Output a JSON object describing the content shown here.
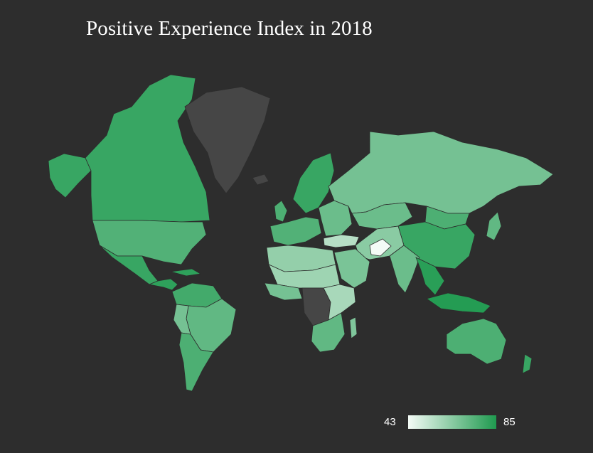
{
  "title": "Positive Experience Index in 2018",
  "legend": {
    "min_label": "43",
    "max_label": "85",
    "min_value": 43,
    "max_value": 85,
    "color_low": "#f4fbf6",
    "color_high": "#1f9a4f"
  },
  "colors": {
    "background": "#2d2d2d",
    "no_data": "#464646"
  },
  "regions": [
    {
      "name": "canada",
      "value": 80
    },
    {
      "name": "alaska",
      "value": 80
    },
    {
      "name": "usa",
      "value": 75
    },
    {
      "name": "mexico",
      "value": 80
    },
    {
      "name": "central-america",
      "value": 82
    },
    {
      "name": "greenland",
      "value": null
    },
    {
      "name": "iceland",
      "value": null
    },
    {
      "name": "south-america-north",
      "value": 78
    },
    {
      "name": "brazil",
      "value": 72
    },
    {
      "name": "south-america-south",
      "value": 76
    },
    {
      "name": "peru-bolivia",
      "value": 68
    },
    {
      "name": "scandinavia",
      "value": 80
    },
    {
      "name": "western-europe",
      "value": 75
    },
    {
      "name": "eastern-europe",
      "value": 70
    },
    {
      "name": "russia",
      "value": 68
    },
    {
      "name": "kazakhstan",
      "value": 70
    },
    {
      "name": "north-africa",
      "value": 62
    },
    {
      "name": "sahel",
      "value": 60
    },
    {
      "name": "west-africa",
      "value": 68
    },
    {
      "name": "central-africa",
      "value": null
    },
    {
      "name": "east-africa",
      "value": 58
    },
    {
      "name": "southern-africa",
      "value": 72
    },
    {
      "name": "madagascar",
      "value": 66
    },
    {
      "name": "arabia",
      "value": 67
    },
    {
      "name": "iran-central-asia",
      "value": 64
    },
    {
      "name": "afghanistan",
      "value": 43
    },
    {
      "name": "india",
      "value": 70
    },
    {
      "name": "china",
      "value": 80
    },
    {
      "name": "mongolia",
      "value": 76
    },
    {
      "name": "southeast-asia",
      "value": 83
    },
    {
      "name": "indonesia",
      "value": 84
    },
    {
      "name": "japan",
      "value": 72
    },
    {
      "name": "australia",
      "value": 76
    },
    {
      "name": "new-zealand",
      "value": 80
    },
    {
      "name": "uk-ireland",
      "value": 76
    },
    {
      "name": "turkey",
      "value": 55
    }
  ]
}
